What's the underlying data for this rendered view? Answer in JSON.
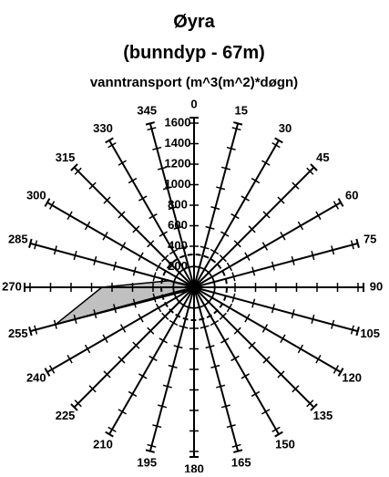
{
  "chart_data": {
    "type": "radar",
    "title": "Øyra",
    "subtitle": "(bunndyp - 67m)",
    "axis_label": "vanntransport (m^3(m^2)*døgn)",
    "categories": [
      "0",
      "15",
      "30",
      "45",
      "60",
      "75",
      "90",
      "105",
      "120",
      "135",
      "150",
      "165",
      "180",
      "195",
      "210",
      "225",
      "240",
      "255",
      "270",
      "285",
      "300",
      "315",
      "330",
      "345"
    ],
    "values": [
      40,
      40,
      40,
      40,
      40,
      40,
      40,
      40,
      40,
      40,
      40,
      40,
      40,
      40,
      40,
      40,
      60,
      1400,
      900,
      250,
      40,
      40,
      40,
      40
    ],
    "color": "#c0c0c0",
    "rlim": [
      0,
      1600
    ],
    "rticks": [
      200,
      400,
      600,
      800,
      1000,
      1200,
      1400,
      1600
    ]
  }
}
